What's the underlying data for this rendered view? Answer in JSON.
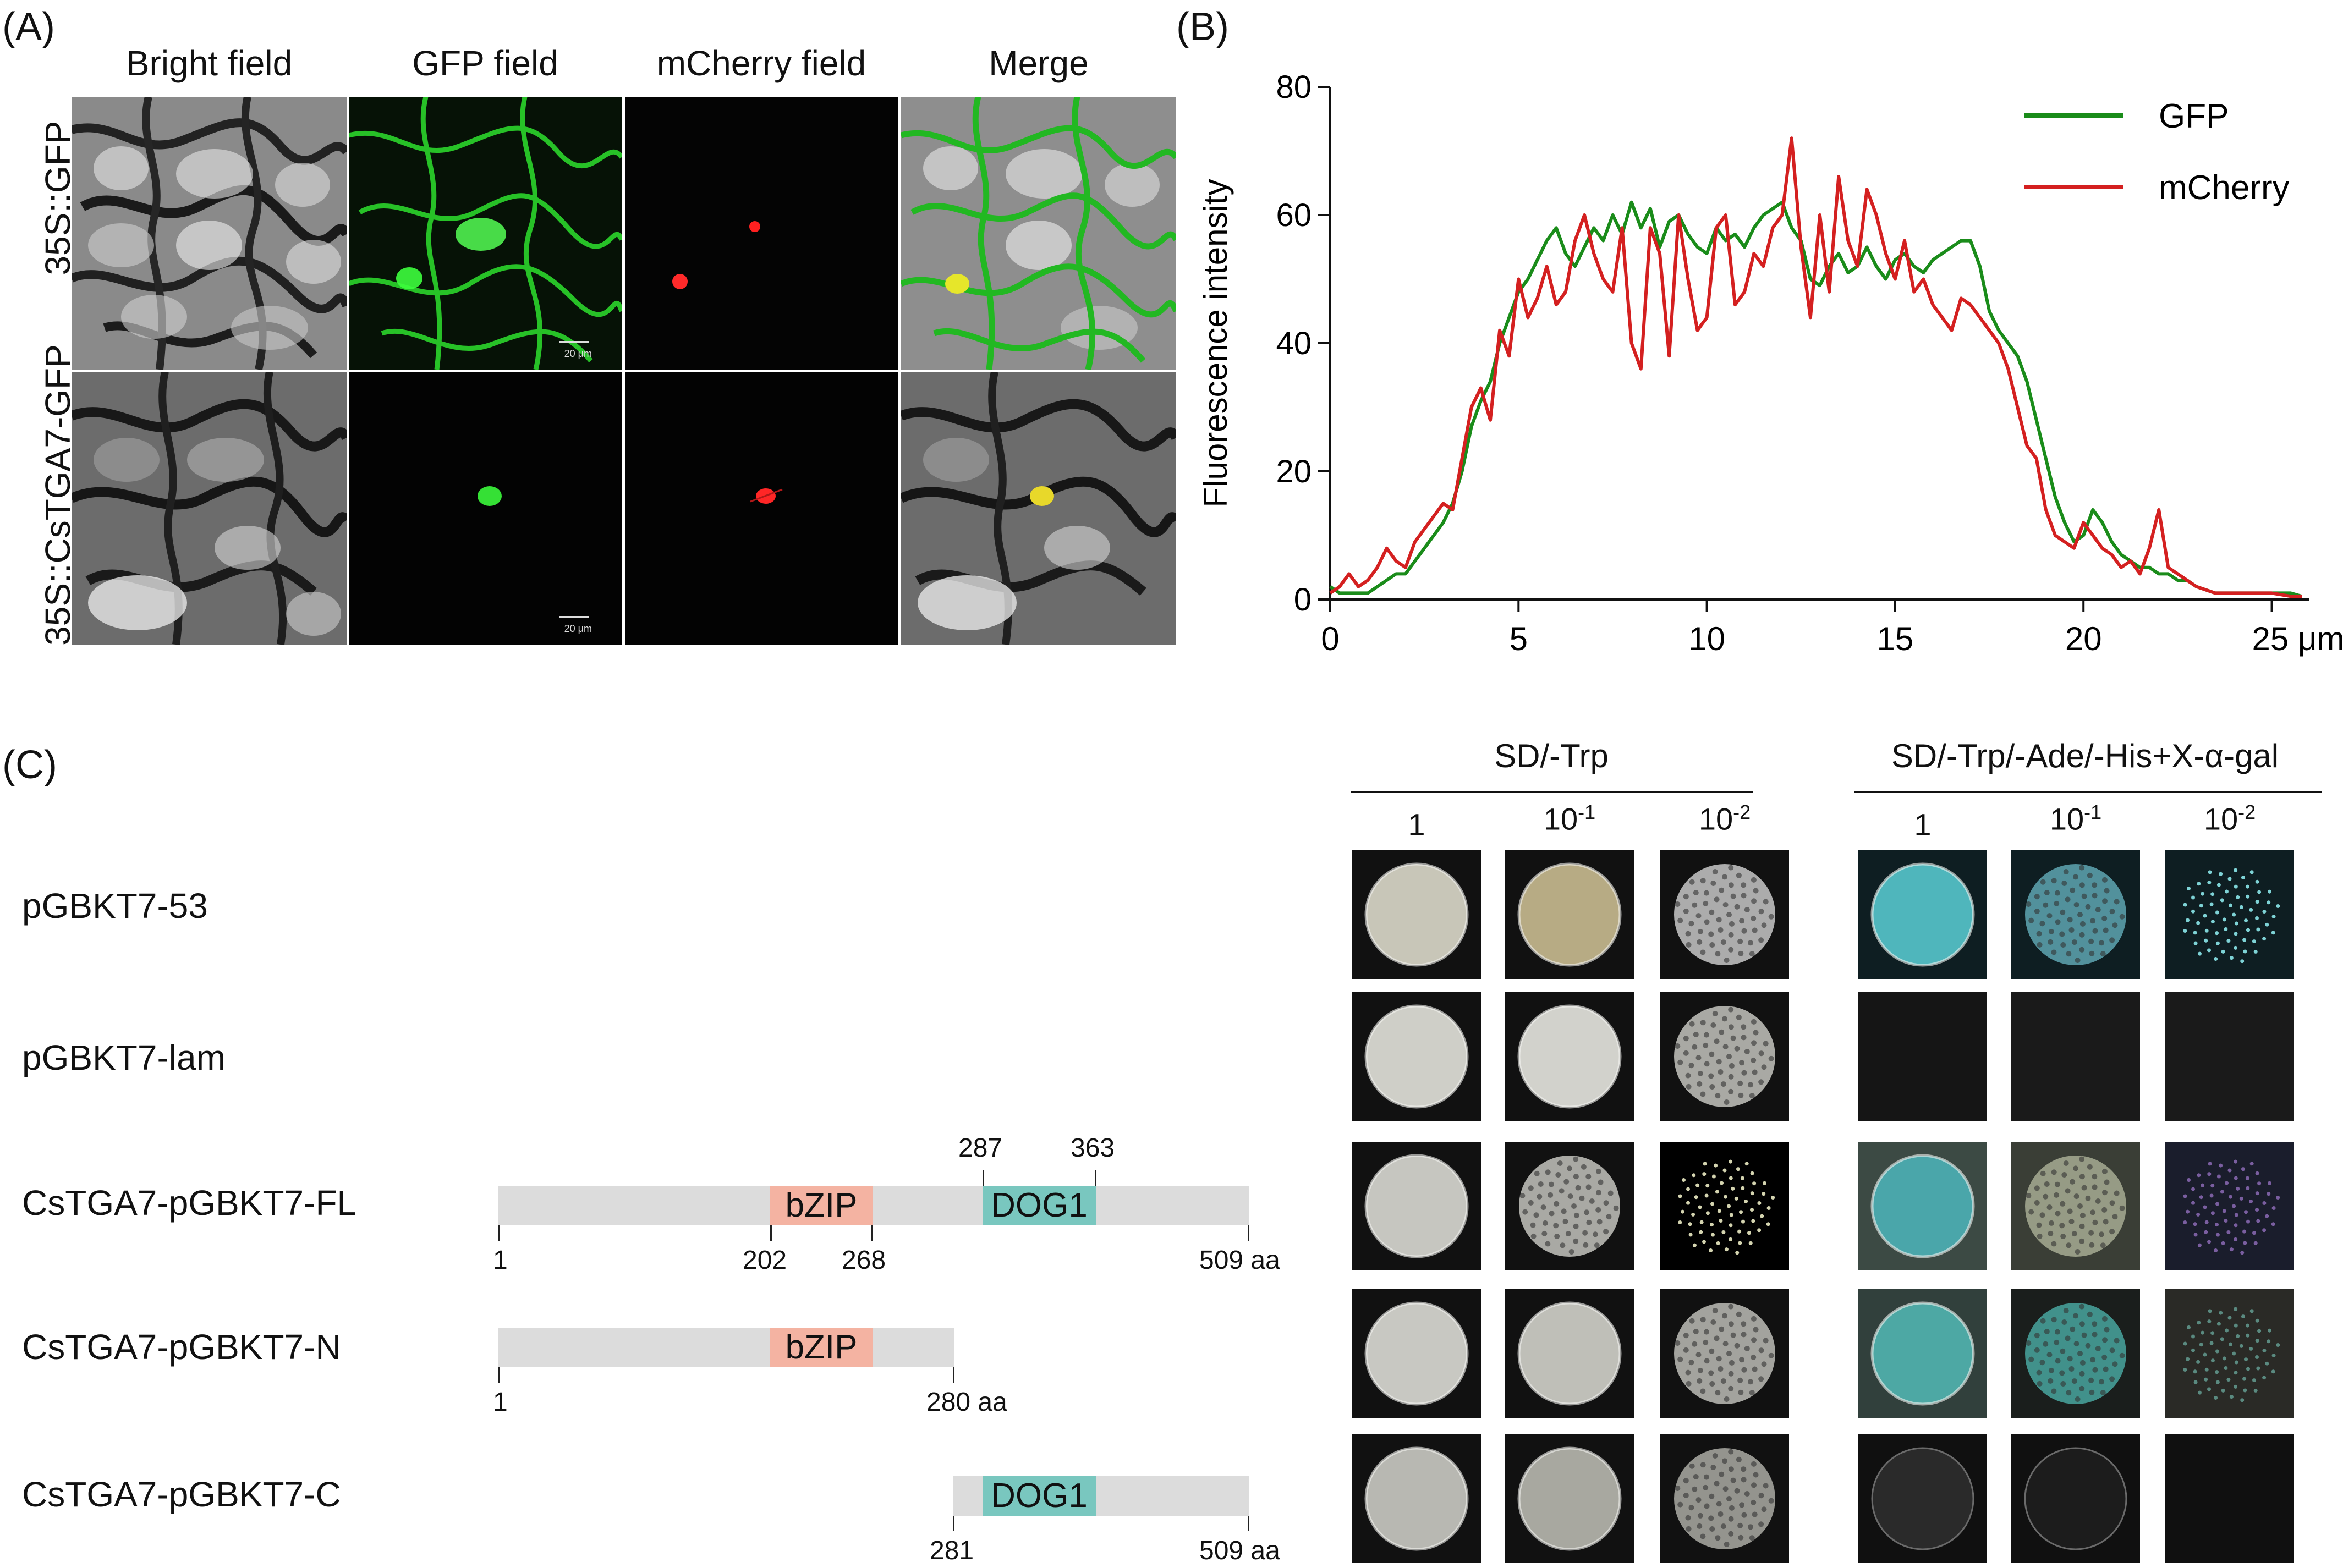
{
  "panel_a": {
    "letter": "(A)",
    "columns": [
      "Bright field",
      "GFP field",
      "mCherry field",
      "Merge"
    ],
    "rows": [
      "35S::GFP",
      "35S::CsTGA7-GFP"
    ],
    "scale_label": "20 μm"
  },
  "panel_b": {
    "letter": "(B)"
  },
  "chart_data": {
    "type": "line",
    "title": "",
    "xlabel": "",
    "ylabel": "Fluorescence intensity",
    "x_unit": "μm",
    "xlim": [
      0,
      26
    ],
    "ylim": [
      0,
      80
    ],
    "xticks": [
      0,
      5,
      10,
      15,
      20,
      25
    ],
    "xtick_labels": [
      "0",
      "5",
      "10",
      "15",
      "20",
      "25 μm"
    ],
    "yticks": [
      0,
      20,
      40,
      60,
      80
    ],
    "grid": false,
    "legend_position": "top-right",
    "series": [
      {
        "name": "GFP",
        "color": "#1a8c1a",
        "x": [
          0,
          0.25,
          0.5,
          0.75,
          1,
          1.25,
          1.5,
          1.75,
          2,
          2.25,
          2.5,
          2.75,
          3,
          3.25,
          3.5,
          3.75,
          4,
          4.25,
          4.5,
          4.75,
          5,
          5.25,
          5.5,
          5.75,
          6,
          6.25,
          6.5,
          6.75,
          7,
          7.25,
          7.5,
          7.75,
          8,
          8.25,
          8.5,
          8.75,
          9,
          9.25,
          9.5,
          9.75,
          10,
          10.25,
          10.5,
          10.75,
          11,
          11.25,
          11.5,
          11.75,
          12,
          12.25,
          12.5,
          12.75,
          13,
          13.25,
          13.5,
          13.75,
          14,
          14.25,
          14.5,
          14.75,
          15,
          15.25,
          15.5,
          15.75,
          16,
          16.25,
          16.5,
          16.75,
          17,
          17.25,
          17.5,
          17.75,
          18,
          18.25,
          18.5,
          18.75,
          19,
          19.25,
          19.5,
          19.75,
          20,
          20.25,
          20.5,
          20.75,
          21,
          21.25,
          21.5,
          21.75,
          22,
          22.25,
          22.5,
          22.75,
          23,
          23.5,
          24,
          24.5,
          25,
          25.5,
          25.8
        ],
        "values": [
          2,
          1,
          1,
          1,
          1,
          2,
          3,
          4,
          4,
          6,
          8,
          10,
          12,
          15,
          20,
          27,
          31,
          34,
          40,
          44,
          48,
          50,
          53,
          56,
          58,
          54,
          52,
          55,
          58,
          56,
          60,
          57,
          62,
          58,
          61,
          55,
          59,
          60,
          57,
          55,
          54,
          58,
          56,
          57,
          55,
          58,
          60,
          61,
          62,
          58,
          56,
          50,
          49,
          52,
          54,
          51,
          52,
          55,
          52,
          50,
          53,
          54,
          52,
          51,
          53,
          54,
          55,
          56,
          56,
          52,
          45,
          42,
          40,
          38,
          34,
          28,
          22,
          16,
          12,
          9,
          10,
          14,
          12,
          9,
          7,
          6,
          5,
          5,
          4,
          4,
          3,
          3,
          2,
          1,
          1,
          1,
          1,
          1,
          0.5
        ],
        "note": ""
      },
      {
        "name": "mCherry",
        "color": "#d42020",
        "x": [
          0,
          0.25,
          0.5,
          0.75,
          1,
          1.25,
          1.5,
          1.75,
          2,
          2.25,
          2.5,
          2.75,
          3,
          3.25,
          3.5,
          3.75,
          4,
          4.25,
          4.5,
          4.75,
          5,
          5.25,
          5.5,
          5.75,
          6,
          6.25,
          6.5,
          6.75,
          7,
          7.25,
          7.5,
          7.75,
          8,
          8.25,
          8.5,
          8.75,
          9,
          9.25,
          9.5,
          9.75,
          10,
          10.25,
          10.5,
          10.75,
          11,
          11.25,
          11.5,
          11.75,
          12,
          12.25,
          12.5,
          12.75,
          13,
          13.25,
          13.5,
          13.75,
          14,
          14.25,
          14.5,
          14.75,
          15,
          15.25,
          15.5,
          15.75,
          16,
          16.25,
          16.5,
          16.75,
          17,
          17.25,
          17.5,
          17.75,
          18,
          18.25,
          18.5,
          18.75,
          19,
          19.25,
          19.5,
          19.75,
          20,
          20.25,
          20.5,
          20.75,
          21,
          21.25,
          21.5,
          21.75,
          22,
          22.25,
          22.5,
          22.75,
          23,
          23.5,
          24,
          24.5,
          25,
          25.5,
          25.8
        ],
        "values": [
          1,
          2,
          4,
          2,
          3,
          5,
          8,
          6,
          5,
          9,
          11,
          13,
          15,
          14,
          22,
          30,
          33,
          28,
          42,
          38,
          50,
          44,
          47,
          52,
          46,
          48,
          56,
          60,
          54,
          50,
          48,
          58,
          40,
          36,
          58,
          54,
          38,
          60,
          50,
          42,
          44,
          58,
          60,
          46,
          48,
          54,
          52,
          58,
          60,
          72,
          55,
          44,
          60,
          48,
          66,
          56,
          52,
          64,
          60,
          54,
          50,
          56,
          48,
          50,
          46,
          44,
          42,
          47,
          46,
          44,
          42,
          40,
          36,
          30,
          24,
          22,
          14,
          10,
          9,
          8,
          12,
          10,
          8,
          7,
          5,
          6,
          4,
          8,
          14,
          5,
          4,
          3,
          2,
          1,
          1,
          1,
          1,
          0.5,
          0.5
        ]
      }
    ]
  },
  "panel_c": {
    "letter": "(C)",
    "sd_trp": "SD/-Trp",
    "sd_qdo": "SD/-Trp/-Ade/-His+X-α-gal",
    "dilutions": [
      {
        "base": "1",
        "exp": ""
      },
      {
        "base": "10",
        "exp": "-1"
      },
      {
        "base": "10",
        "exp": "-2"
      }
    ],
    "domain_bzip": "bZIP",
    "domain_dog1": "DOG1",
    "constructs": [
      {
        "label": "pGBKT7-53"
      },
      {
        "label": "pGBKT7-lam"
      },
      {
        "label": "CsTGA7-pGBKT7-FL",
        "start": "1",
        "end": "509 aa",
        "bzip_start": "202",
        "bzip_end": "268",
        "dog1_start": "287",
        "dog1_end": "363"
      },
      {
        "label": "CsTGA7-pGBKT7-N",
        "start": "1",
        "end": "280 aa"
      },
      {
        "label": "CsTGA7-pGBKT7-C",
        "start": "281",
        "end": "509 aa"
      }
    ]
  }
}
